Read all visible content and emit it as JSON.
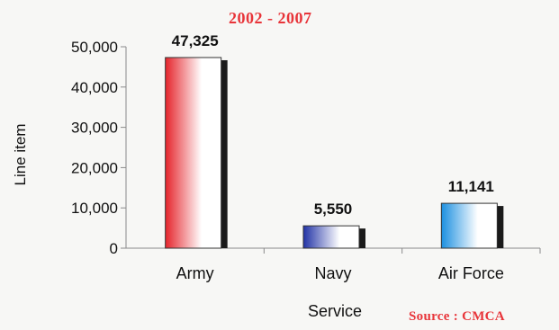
{
  "chart_data": {
    "type": "bar",
    "subtitle": "2002 - 2007",
    "source": "Source : CMCA",
    "xlabel": "Service",
    "ylabel": "Line item",
    "categories": [
      "Army",
      "Navy",
      "Air Force"
    ],
    "values": [
      47325,
      5550,
      11141
    ],
    "data_labels": [
      "47,325",
      "5,550",
      "11,141"
    ],
    "yticks": [
      "0",
      "10,000",
      "20,000",
      "30,000",
      "40,000",
      "50,000"
    ],
    "ylim": [
      0,
      50000
    ],
    "grid": false,
    "legend": "none",
    "colors": [
      "#e5242b",
      "#2233a6",
      "#1b8fe0"
    ],
    "bar_style": "3d-gradient"
  }
}
